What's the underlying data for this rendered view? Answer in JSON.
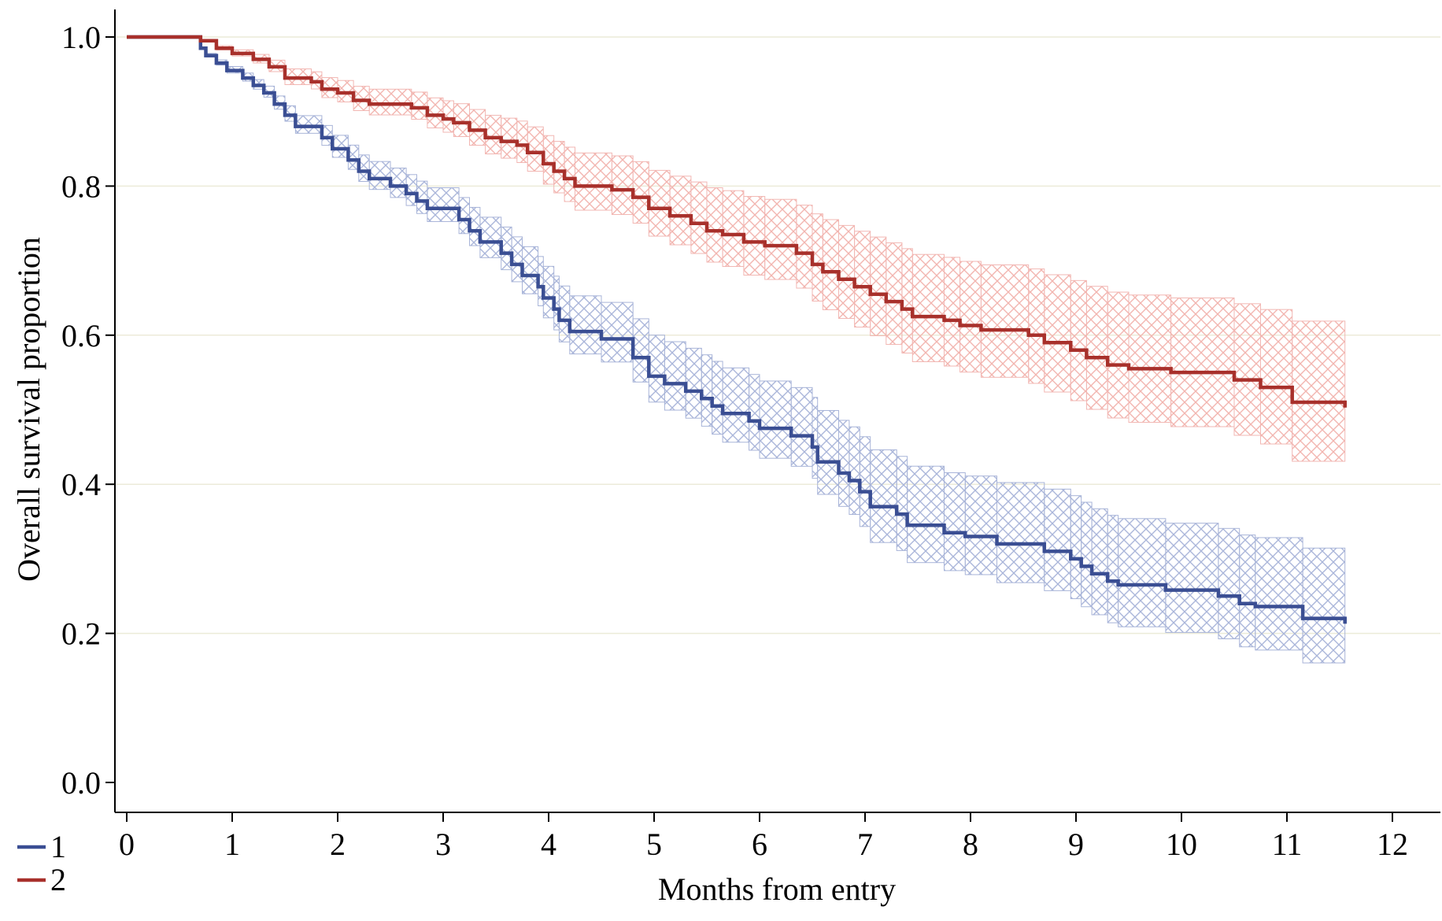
{
  "chart_data": {
    "type": "line",
    "subtype": "kaplan-meier step curves with hatched confidence bands",
    "title": "",
    "xlabel": "Months from entry",
    "ylabel": "Overall survival proportion",
    "xlim": [
      0,
      12.4
    ],
    "ylim": [
      0,
      1.0
    ],
    "xticks": [
      0,
      1,
      2,
      3,
      4,
      5,
      6,
      7,
      8,
      9,
      10,
      11,
      12
    ],
    "yticks": [
      0.0,
      0.2,
      0.4,
      0.6,
      0.8,
      1.0
    ],
    "ytick_labels": [
      "0.0",
      "0.2",
      "0.4",
      "0.6",
      "0.8",
      "1.0"
    ],
    "grid": "horizontal",
    "legend_position": "bottom-left",
    "series": [
      {
        "name": "1",
        "color": "#3a4e93",
        "band_color": "#a8b4d8",
        "points": [
          [
            0,
            1.0
          ],
          [
            0.65,
            1.0
          ],
          [
            0.7,
            0.985
          ],
          [
            0.75,
            0.975
          ],
          [
            0.85,
            0.965
          ],
          [
            0.95,
            0.955
          ],
          [
            1.1,
            0.945
          ],
          [
            1.2,
            0.935
          ],
          [
            1.3,
            0.925
          ],
          [
            1.4,
            0.91
          ],
          [
            1.5,
            0.895
          ],
          [
            1.6,
            0.88
          ],
          [
            1.85,
            0.865
          ],
          [
            1.95,
            0.85
          ],
          [
            2.1,
            0.835
          ],
          [
            2.2,
            0.82
          ],
          [
            2.3,
            0.81
          ],
          [
            2.5,
            0.8
          ],
          [
            2.65,
            0.79
          ],
          [
            2.75,
            0.78
          ],
          [
            2.85,
            0.77
          ],
          [
            3.15,
            0.755
          ],
          [
            3.25,
            0.74
          ],
          [
            3.35,
            0.725
          ],
          [
            3.55,
            0.71
          ],
          [
            3.65,
            0.695
          ],
          [
            3.75,
            0.68
          ],
          [
            3.9,
            0.665
          ],
          [
            3.95,
            0.65
          ],
          [
            4.05,
            0.635
          ],
          [
            4.1,
            0.62
          ],
          [
            4.2,
            0.605
          ],
          [
            4.5,
            0.595
          ],
          [
            4.8,
            0.57
          ],
          [
            4.95,
            0.545
          ],
          [
            5.1,
            0.535
          ],
          [
            5.3,
            0.525
          ],
          [
            5.45,
            0.515
          ],
          [
            5.55,
            0.505
          ],
          [
            5.65,
            0.495
          ],
          [
            5.9,
            0.485
          ],
          [
            6.0,
            0.475
          ],
          [
            6.3,
            0.465
          ],
          [
            6.5,
            0.45
          ],
          [
            6.55,
            0.43
          ],
          [
            6.75,
            0.415
          ],
          [
            6.85,
            0.405
          ],
          [
            6.95,
            0.39
          ],
          [
            7.05,
            0.37
          ],
          [
            7.3,
            0.36
          ],
          [
            7.4,
            0.345
          ],
          [
            7.75,
            0.335
          ],
          [
            7.95,
            0.33
          ],
          [
            8.25,
            0.32
          ],
          [
            8.7,
            0.31
          ],
          [
            8.95,
            0.3
          ],
          [
            9.05,
            0.29
          ],
          [
            9.15,
            0.28
          ],
          [
            9.3,
            0.27
          ],
          [
            9.4,
            0.265
          ],
          [
            9.85,
            0.258
          ],
          [
            10.35,
            0.25
          ],
          [
            10.55,
            0.24
          ],
          [
            10.7,
            0.236
          ],
          [
            11.15,
            0.22
          ],
          [
            11.55,
            0.215
          ]
        ],
        "ci_lower_at_end": 0.155,
        "ci_upper_at_end": 0.31
      },
      {
        "name": "2",
        "color": "#a8302b",
        "band_color": "#f2b7b3",
        "points": [
          [
            0,
            1.0
          ],
          [
            0.65,
            1.0
          ],
          [
            0.7,
            0.995
          ],
          [
            0.85,
            0.985
          ],
          [
            1.0,
            0.978
          ],
          [
            1.2,
            0.97
          ],
          [
            1.35,
            0.96
          ],
          [
            1.5,
            0.945
          ],
          [
            1.75,
            0.94
          ],
          [
            1.85,
            0.93
          ],
          [
            2.0,
            0.925
          ],
          [
            2.15,
            0.915
          ],
          [
            2.3,
            0.91
          ],
          [
            2.7,
            0.905
          ],
          [
            2.85,
            0.895
          ],
          [
            3.0,
            0.89
          ],
          [
            3.1,
            0.885
          ],
          [
            3.25,
            0.875
          ],
          [
            3.4,
            0.865
          ],
          [
            3.55,
            0.86
          ],
          [
            3.7,
            0.855
          ],
          [
            3.8,
            0.845
          ],
          [
            3.95,
            0.83
          ],
          [
            4.05,
            0.82
          ],
          [
            4.15,
            0.81
          ],
          [
            4.25,
            0.8
          ],
          [
            4.6,
            0.795
          ],
          [
            4.8,
            0.785
          ],
          [
            4.95,
            0.77
          ],
          [
            5.15,
            0.76
          ],
          [
            5.35,
            0.75
          ],
          [
            5.5,
            0.74
          ],
          [
            5.65,
            0.735
          ],
          [
            5.85,
            0.725
          ],
          [
            6.05,
            0.72
          ],
          [
            6.35,
            0.71
          ],
          [
            6.5,
            0.695
          ],
          [
            6.6,
            0.685
          ],
          [
            6.75,
            0.675
          ],
          [
            6.9,
            0.665
          ],
          [
            7.05,
            0.655
          ],
          [
            7.2,
            0.645
          ],
          [
            7.35,
            0.635
          ],
          [
            7.45,
            0.625
          ],
          [
            7.75,
            0.62
          ],
          [
            7.9,
            0.613
          ],
          [
            8.1,
            0.607
          ],
          [
            8.55,
            0.6
          ],
          [
            8.7,
            0.59
          ],
          [
            8.95,
            0.58
          ],
          [
            9.1,
            0.57
          ],
          [
            9.3,
            0.56
          ],
          [
            9.5,
            0.555
          ],
          [
            9.9,
            0.55
          ],
          [
            10.5,
            0.54
          ],
          [
            10.75,
            0.53
          ],
          [
            11.05,
            0.51
          ],
          [
            11.55,
            0.505
          ]
        ],
        "ci_lower_at_end": 0.425,
        "ci_upper_at_end": 0.615
      }
    ]
  }
}
